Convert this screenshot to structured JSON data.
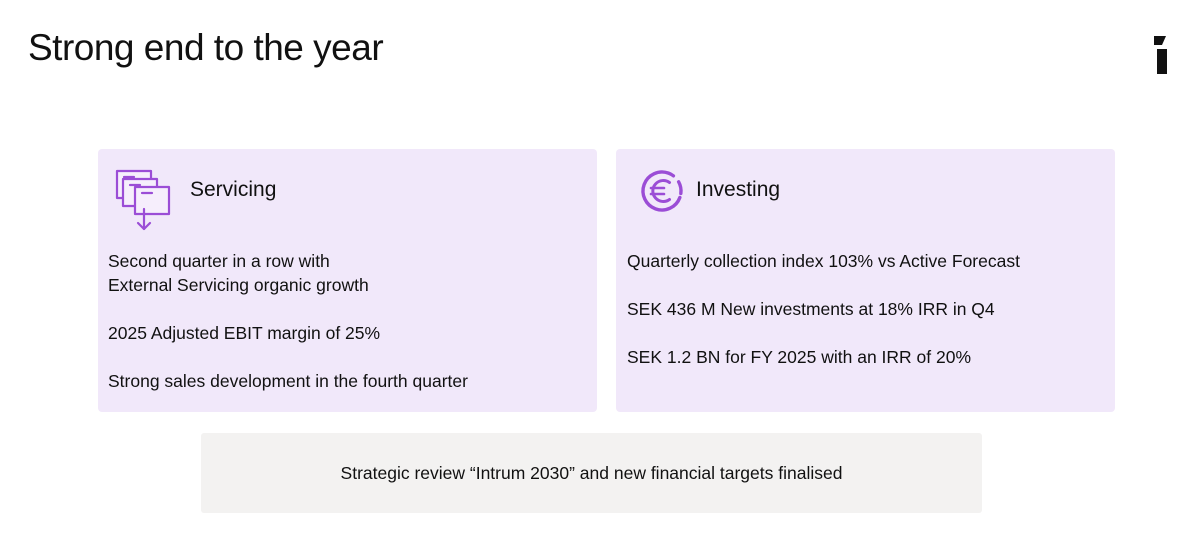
{
  "title": "Strong end to the year",
  "brand": {
    "logo_icon": "intrum-logo-icon"
  },
  "colors": {
    "card_background": "#f1e8fa",
    "accent_purple": "#9b4dd6",
    "banner_background": "#f3f2f1",
    "text": "#111111"
  },
  "cards": [
    {
      "icon": "documents-transfer-icon",
      "title": "Servicing",
      "points": [
        "Second quarter in a row with\nExternal Servicing organic growth",
        "2025 Adjusted EBIT margin of 25%",
        "Strong sales development in the fourth quarter"
      ]
    },
    {
      "icon": "euro-coin-icon",
      "title": "Investing",
      "points": [
        "Quarterly collection index 103% vs Active Forecast",
        "SEK 436 M New investments at 18% IRR in Q4",
        "SEK 1.2 BN for FY 2025 with an IRR of 20%"
      ]
    }
  ],
  "banner": {
    "text": "Strategic review “Intrum 2030” and new financial targets finalised"
  }
}
